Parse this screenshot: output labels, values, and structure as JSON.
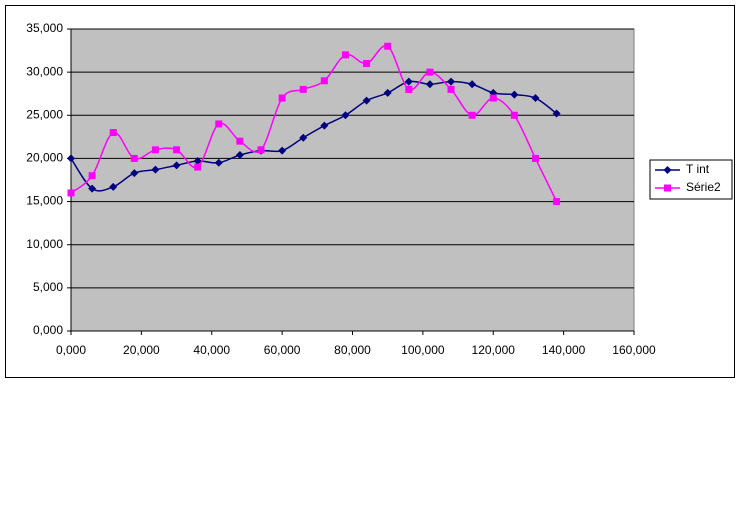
{
  "chart_data": {
    "type": "scatter",
    "x": [
      0,
      6000,
      12000,
      18000,
      24000,
      30000,
      36000,
      42000,
      48000,
      54000,
      60000,
      66000,
      72000,
      78000,
      84000,
      90000,
      96000,
      102000,
      108000,
      114000,
      120000,
      126000,
      132000,
      138000
    ],
    "series": [
      {
        "name": "T int",
        "color": "#000080",
        "marker": "diamond",
        "values": [
          20000,
          16500,
          16700,
          18300,
          18700,
          19200,
          19700,
          19500,
          20400,
          20900,
          20900,
          22400,
          23800,
          25000,
          26700,
          27600,
          28900,
          28600,
          28900,
          28600,
          27600,
          27400,
          27000,
          25200
        ]
      },
      {
        "name": "Série2",
        "color": "#ff00ff",
        "marker": "square",
        "values": [
          16000,
          18000,
          23000,
          20000,
          21000,
          21000,
          19000,
          24000,
          22000,
          21000,
          27000,
          28000,
          29000,
          32000,
          31000,
          33000,
          28000,
          30000,
          28000,
          25000,
          27000,
          25000,
          20000,
          15000
        ]
      }
    ],
    "xlim": [
      0,
      160000
    ],
    "xticks": [
      {
        "value": 0,
        "label": "0,000"
      },
      {
        "value": 20000,
        "label": "20,000"
      },
      {
        "value": 40000,
        "label": "40,000"
      },
      {
        "value": 60000,
        "label": "60,000"
      },
      {
        "value": 80000,
        "label": "80,000"
      },
      {
        "value": 100000,
        "label": "100,000"
      },
      {
        "value": 120000,
        "label": "120,000"
      },
      {
        "value": 140000,
        "label": "140,000"
      },
      {
        "value": 160000,
        "label": "160,000"
      }
    ],
    "ylim": [
      0,
      35000
    ],
    "yticks": [
      {
        "value": 0,
        "label": "0,000"
      },
      {
        "value": 5000,
        "label": "5,000"
      },
      {
        "value": 10000,
        "label": "10,000"
      },
      {
        "value": 15000,
        "label": "15,000"
      },
      {
        "value": 20000,
        "label": "20,000"
      },
      {
        "value": 25000,
        "label": "25,000"
      },
      {
        "value": 30000,
        "label": "30,000"
      },
      {
        "value": 35000,
        "label": "35,000"
      }
    ],
    "grid": true,
    "smooth": true,
    "legend": "right"
  }
}
